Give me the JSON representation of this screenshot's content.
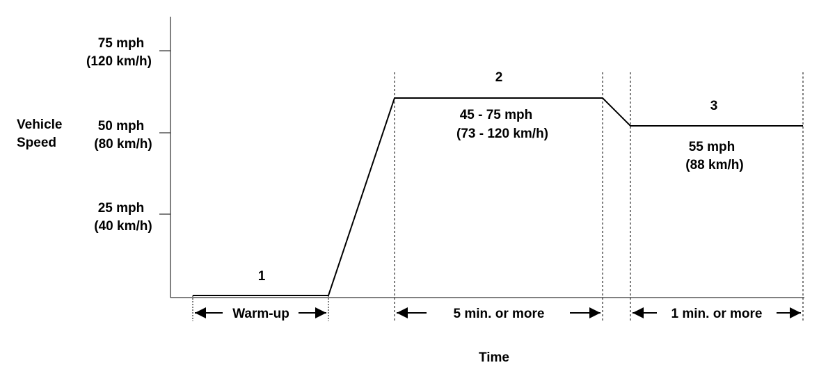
{
  "y_axis": {
    "title_line1": "Vehicle",
    "title_line2": "Speed",
    "ticks": [
      {
        "speed_mph": 75,
        "mph": "75 mph",
        "kmh": "(120 km/h)"
      },
      {
        "speed_mph": 50,
        "mph": "50 mph",
        "kmh": "(80 km/h)"
      },
      {
        "speed_mph": 25,
        "mph": "25 mph",
        "kmh": "(40 km/h)"
      }
    ]
  },
  "x_axis": {
    "title": "Time"
  },
  "phases": [
    {
      "number": "1",
      "duration": "Warm-up"
    },
    {
      "number": "2",
      "duration": "5 min. or more",
      "speed_line1": "45 - 75 mph",
      "speed_line2": "(73 - 120 km/h)"
    },
    {
      "number": "3",
      "duration": "1 min. or more",
      "speed_line1": "55 mph",
      "speed_line2": "(88 km/h)"
    }
  ]
}
